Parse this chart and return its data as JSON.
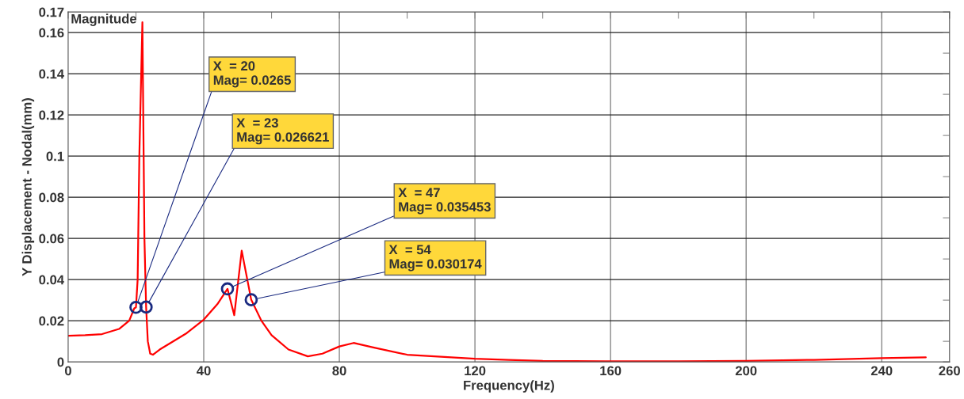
{
  "chart_data": {
    "type": "line",
    "title": "Magnitude",
    "xlabel": "Frequency(Hz)",
    "ylabel": "Y Displacement - Nodal(mm)",
    "x": [
      0,
      5,
      10,
      15,
      18,
      19.5,
      20,
      20.5,
      21,
      21.9,
      22.5,
      23,
      23.5,
      24.2,
      25,
      27,
      30,
      35,
      40,
      44,
      47,
      49,
      51.2,
      54,
      57,
      60,
      65,
      70.7,
      75,
      80,
      84.2,
      90,
      100,
      110,
      120,
      130,
      140,
      160,
      180,
      200,
      220,
      240,
      253
    ],
    "series": [
      {
        "color": "#ff0000",
        "values": [
          0.0127,
          0.013,
          0.0135,
          0.016,
          0.02,
          0.026,
          0.0265,
          0.04,
          0.1,
          0.165,
          0.06,
          0.0266,
          0.01,
          0.004,
          0.0035,
          0.006,
          0.009,
          0.014,
          0.0205,
          0.028,
          0.0355,
          0.0227,
          0.054,
          0.0302,
          0.02,
          0.013,
          0.006,
          0.0027,
          0.004,
          0.0075,
          0.0092,
          0.007,
          0.0035,
          0.0025,
          0.0015,
          0.001,
          0.0005,
          0.0003,
          0.0003,
          0.0005,
          0.001,
          0.0018,
          0.0022
        ]
      }
    ],
    "xlim": [
      0,
      260
    ],
    "ylim": [
      0,
      0.17
    ],
    "xticks": [
      0,
      {
        "value": 20,
        "label": null
      },
      40,
      {
        "value": 60,
        "label": null
      },
      80,
      {
        "value": 100,
        "label": null
      },
      120,
      {
        "value": 140,
        "label": null
      },
      160,
      {
        "value": 180,
        "label": null
      },
      200,
      {
        "value": 220,
        "label": null
      },
      240,
      260
    ],
    "yticks": [
      0,
      {
        "value": 0.01,
        "label": null
      },
      0.02,
      {
        "value": 0.03,
        "label": null
      },
      0.04,
      {
        "value": 0.05,
        "label": null
      },
      0.06,
      {
        "value": 0.07,
        "label": null
      },
      0.08,
      {
        "value": 0.09,
        "label": null
      },
      0.1,
      {
        "value": 0.11,
        "label": null
      },
      0.12,
      {
        "value": 0.13,
        "label": null
      },
      0.14,
      {
        "value": 0.15,
        "label": null
      },
      0.16,
      0.17
    ],
    "grid": true,
    "annotations": [
      {
        "text": "X  = 20\nMag= 0.0265",
        "x": 20,
        "y": 0.0265
      },
      {
        "text": "X  = 23\nMag= 0.026621",
        "x": 23,
        "y": 0.026621
      },
      {
        "text": "X  = 47\nMag= 0.035453",
        "x": 47,
        "y": 0.035453
      },
      {
        "text": "X  = 54\nMag= 0.030174",
        "x": 54,
        "y": 0.030174
      }
    ]
  }
}
